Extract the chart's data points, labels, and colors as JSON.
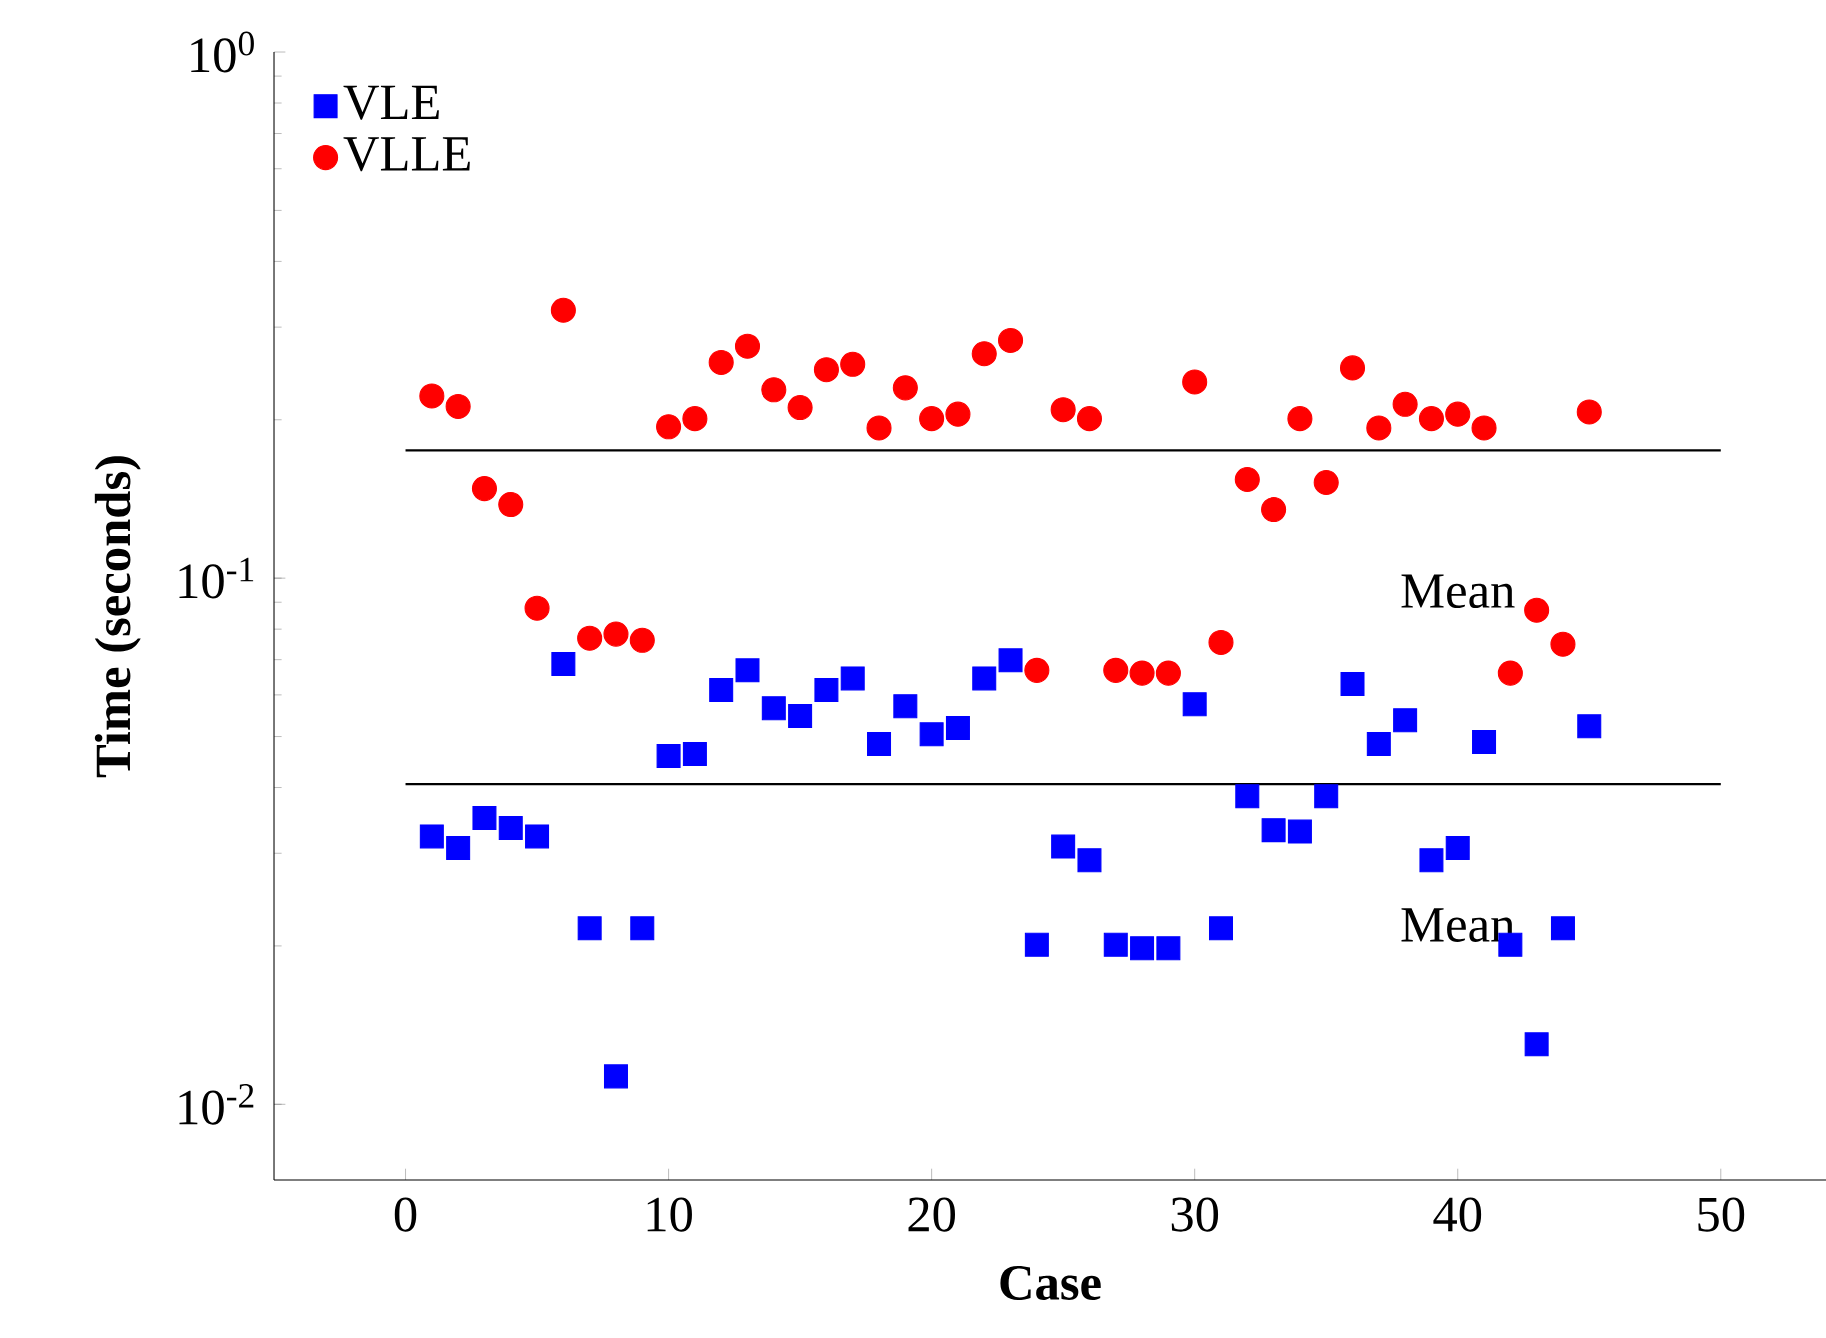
{
  "chart_data": {
    "type": "scatter",
    "xlabel": "Case",
    "ylabel": "Time (seconds)",
    "log": "y",
    "xlim": [
      -5,
      54
    ],
    "ylim": [
      0.00718,
      1
    ],
    "xticks": [
      0,
      10,
      20,
      30,
      40,
      50
    ],
    "yticks": [
      {
        "value": 0.01,
        "label": "10$^{-2}$"
      },
      {
        "value": 0.1,
        "label": "10$^{-1}$"
      },
      {
        "value": 1,
        "label": "10$^{0}$"
      }
    ],
    "legend": "top left",
    "grid": false,
    "x": [
      1,
      2,
      3,
      4,
      5,
      6,
      7,
      8,
      9,
      10,
      11,
      12,
      13,
      14,
      15,
      16,
      17,
      18,
      19,
      20,
      21,
      22,
      23,
      24,
      25,
      26,
      27,
      28,
      29,
      30,
      31,
      32,
      33,
      34,
      35,
      36,
      37,
      38,
      39,
      40,
      41,
      42,
      43,
      44,
      45
    ],
    "series": [
      {
        "name": "VLE",
        "color": "#0000ff",
        "marker": "square",
        "values": [
          0.0323,
          0.0307,
          0.035,
          0.0335,
          0.0323,
          0.0687,
          0.0216,
          0.0113,
          0.0216,
          0.0459,
          0.0463,
          0.0613,
          0.0668,
          0.0566,
          0.0547,
          0.0613,
          0.0645,
          0.0484,
          0.0571,
          0.0505,
          0.0519,
          0.0645,
          0.0698,
          0.0201,
          0.0309,
          0.0291,
          0.0201,
          0.0198,
          0.0198,
          0.0576,
          0.0216,
          0.0385,
          0.0332,
          0.033,
          0.0385,
          0.0629,
          0.0484,
          0.0537,
          0.0291,
          0.0307,
          0.0488,
          0.0201,
          0.013,
          0.0216,
          0.0523
        ]
      },
      {
        "name": "VLLE",
        "color": "#ff0000",
        "marker": "circle",
        "values": [
          0.222,
          0.212,
          0.148,
          0.138,
          0.0877,
          0.323,
          0.0769,
          0.0783,
          0.0762,
          0.194,
          0.201,
          0.257,
          0.276,
          0.228,
          0.211,
          0.249,
          0.255,
          0.193,
          0.23,
          0.201,
          0.205,
          0.267,
          0.283,
          0.0668,
          0.209,
          0.201,
          0.0668,
          0.066,
          0.066,
          0.236,
          0.0755,
          0.154,
          0.135,
          0.201,
          0.152,
          0.251,
          0.193,
          0.214,
          0.201,
          0.205,
          0.193,
          0.066,
          0.0869,
          0.0749,
          0.207
        ]
      }
    ],
    "ref_lines": [
      {
        "axis": "y",
        "value": 0.175,
        "label": "Mean",
        "color": "#000000"
      },
      {
        "axis": "y",
        "value": 0.0406,
        "label": "Mean",
        "color": "#000000"
      }
    ]
  }
}
